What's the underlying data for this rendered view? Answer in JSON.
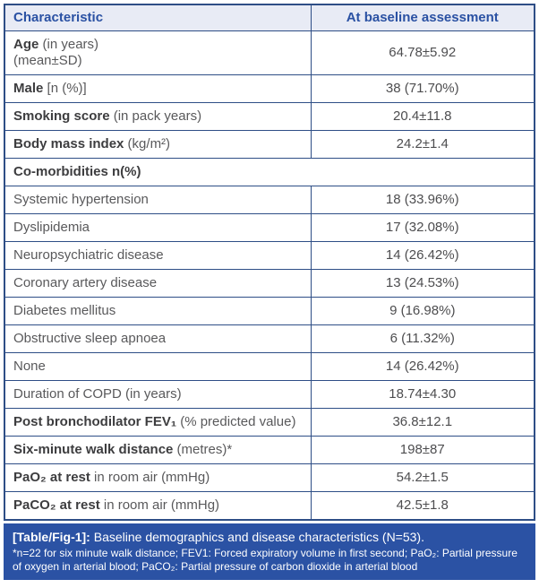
{
  "table": {
    "columns": [
      "Characteristic",
      "At baseline assessment"
    ],
    "rows": [
      {
        "bold": "Age",
        "regular": " (in years)",
        "line2": "(mean±SD)",
        "value": "64.78±5.92"
      },
      {
        "bold": "Male",
        "regular": " [n (%)]",
        "value": "38 (71.70%)"
      },
      {
        "bold": "Smoking score",
        "regular": " (in pack years)",
        "value": "20.4±11.8"
      },
      {
        "bold": "Body mass index",
        "regular": " (kg/m²)",
        "value": "24.2±1.4"
      },
      {
        "section": true,
        "bold": "Co-morbidities n(%)"
      },
      {
        "regular": "Systemic hypertension",
        "value": "18 (33.96%)"
      },
      {
        "regular": "Dyslipidemia",
        "value": "17 (32.08%)"
      },
      {
        "regular": "Neuropsychiatric disease",
        "value": "14 (26.42%)"
      },
      {
        "regular": "Coronary artery disease",
        "value": "13 (24.53%)"
      },
      {
        "regular": "Diabetes mellitus",
        "value": "9 (16.98%)"
      },
      {
        "regular": "Obstructive sleep apnoea",
        "value": "6 (11.32%)"
      },
      {
        "regular": "None",
        "value": "14 (26.42%)"
      },
      {
        "regular": "Duration of COPD (in years)",
        "value": "18.74±4.30"
      },
      {
        "bold": "Post bronchodilator FEV₁",
        "regular": " (% predicted value)",
        "value": "36.8±12.1"
      },
      {
        "bold": "Six-minute walk distance",
        "regular": " (metres)*",
        "value": "198±87"
      },
      {
        "bold": "PaO₂ at rest",
        "regular": " in room air (mmHg)",
        "value": "54.2±1.5"
      },
      {
        "bold": "PaCO₂ at rest",
        "regular": " in room air (mmHg)",
        "value": "42.5±1.8"
      }
    ]
  },
  "footer": {
    "caption_label": "[Table/Fig-1]:",
    "caption_text": " Baseline demographics and disease characteristics (N=53).",
    "footnote": "*n=22 for six minute walk distance; FEV1: Forced expiratory volume in first second; PaO₂: Partial pressure of oxygen in arterial blood; PaCO₂: Partial pressure of carbon dioxide in arterial blood"
  },
  "colors": {
    "header_bg": "#e8ebf5",
    "header_text": "#2a51a3",
    "border": "#2e4e86",
    "footer_bg": "#2b52a4",
    "label_bold": "#3d3d3f",
    "label_regular": "#59595b",
    "value_text": "#4d4d4f"
  }
}
